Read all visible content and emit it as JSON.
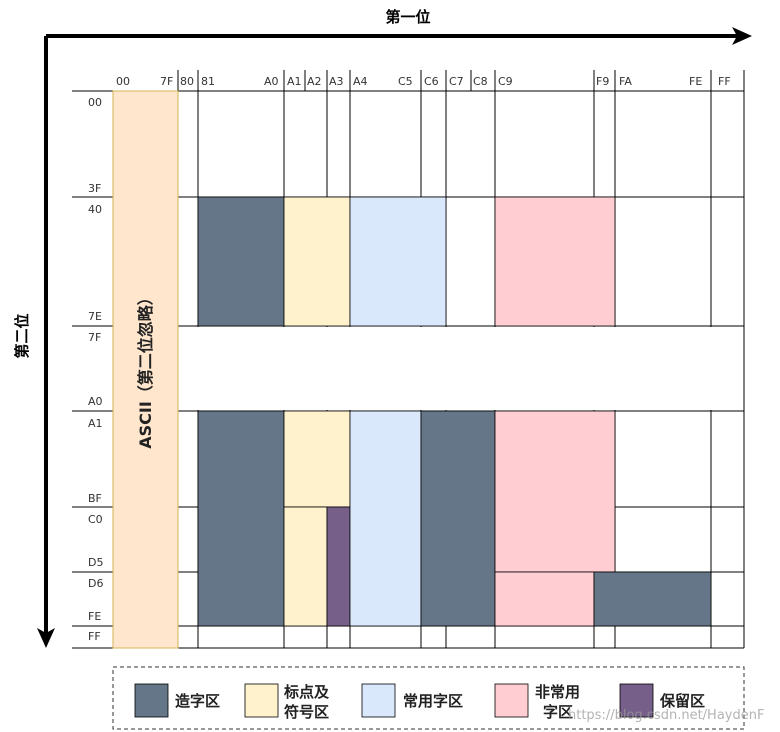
{
  "axes": {
    "x_title": "第一位",
    "y_title": "第二位"
  },
  "top_labels": [
    "00",
    "7F",
    "80",
    "81",
    "A0",
    "A1",
    "A2",
    "A3",
    "A4",
    "C5",
    "C6",
    "C7",
    "C8",
    "C9",
    "F9",
    "FA",
    "FE",
    "FF"
  ],
  "left_labels": [
    "00",
    "3F",
    "40",
    "7E",
    "7F",
    "A0",
    "A1",
    "BF",
    "C0",
    "D5",
    "D6",
    "FE",
    "FF"
  ],
  "ascii_label": "ASCII（第二位忽略）",
  "colors": {
    "custom": "#647687",
    "punct": "#fff2cc",
    "common": "#dae8fc",
    "uncommon": "#ffcdd2",
    "reserved": "#76608a",
    "ascii": "#ffe6cc",
    "ascii_border": "#d6b656"
  },
  "legend": {
    "custom": "造字区",
    "punct_line1": "标点及",
    "punct_line2": "符号区",
    "common": "常用字区",
    "uncommon_line1": "非常用",
    "uncommon_line2": "字区",
    "reserved": "保留区"
  },
  "watermark": "https://blog.csdn.net/HaydenF"
}
